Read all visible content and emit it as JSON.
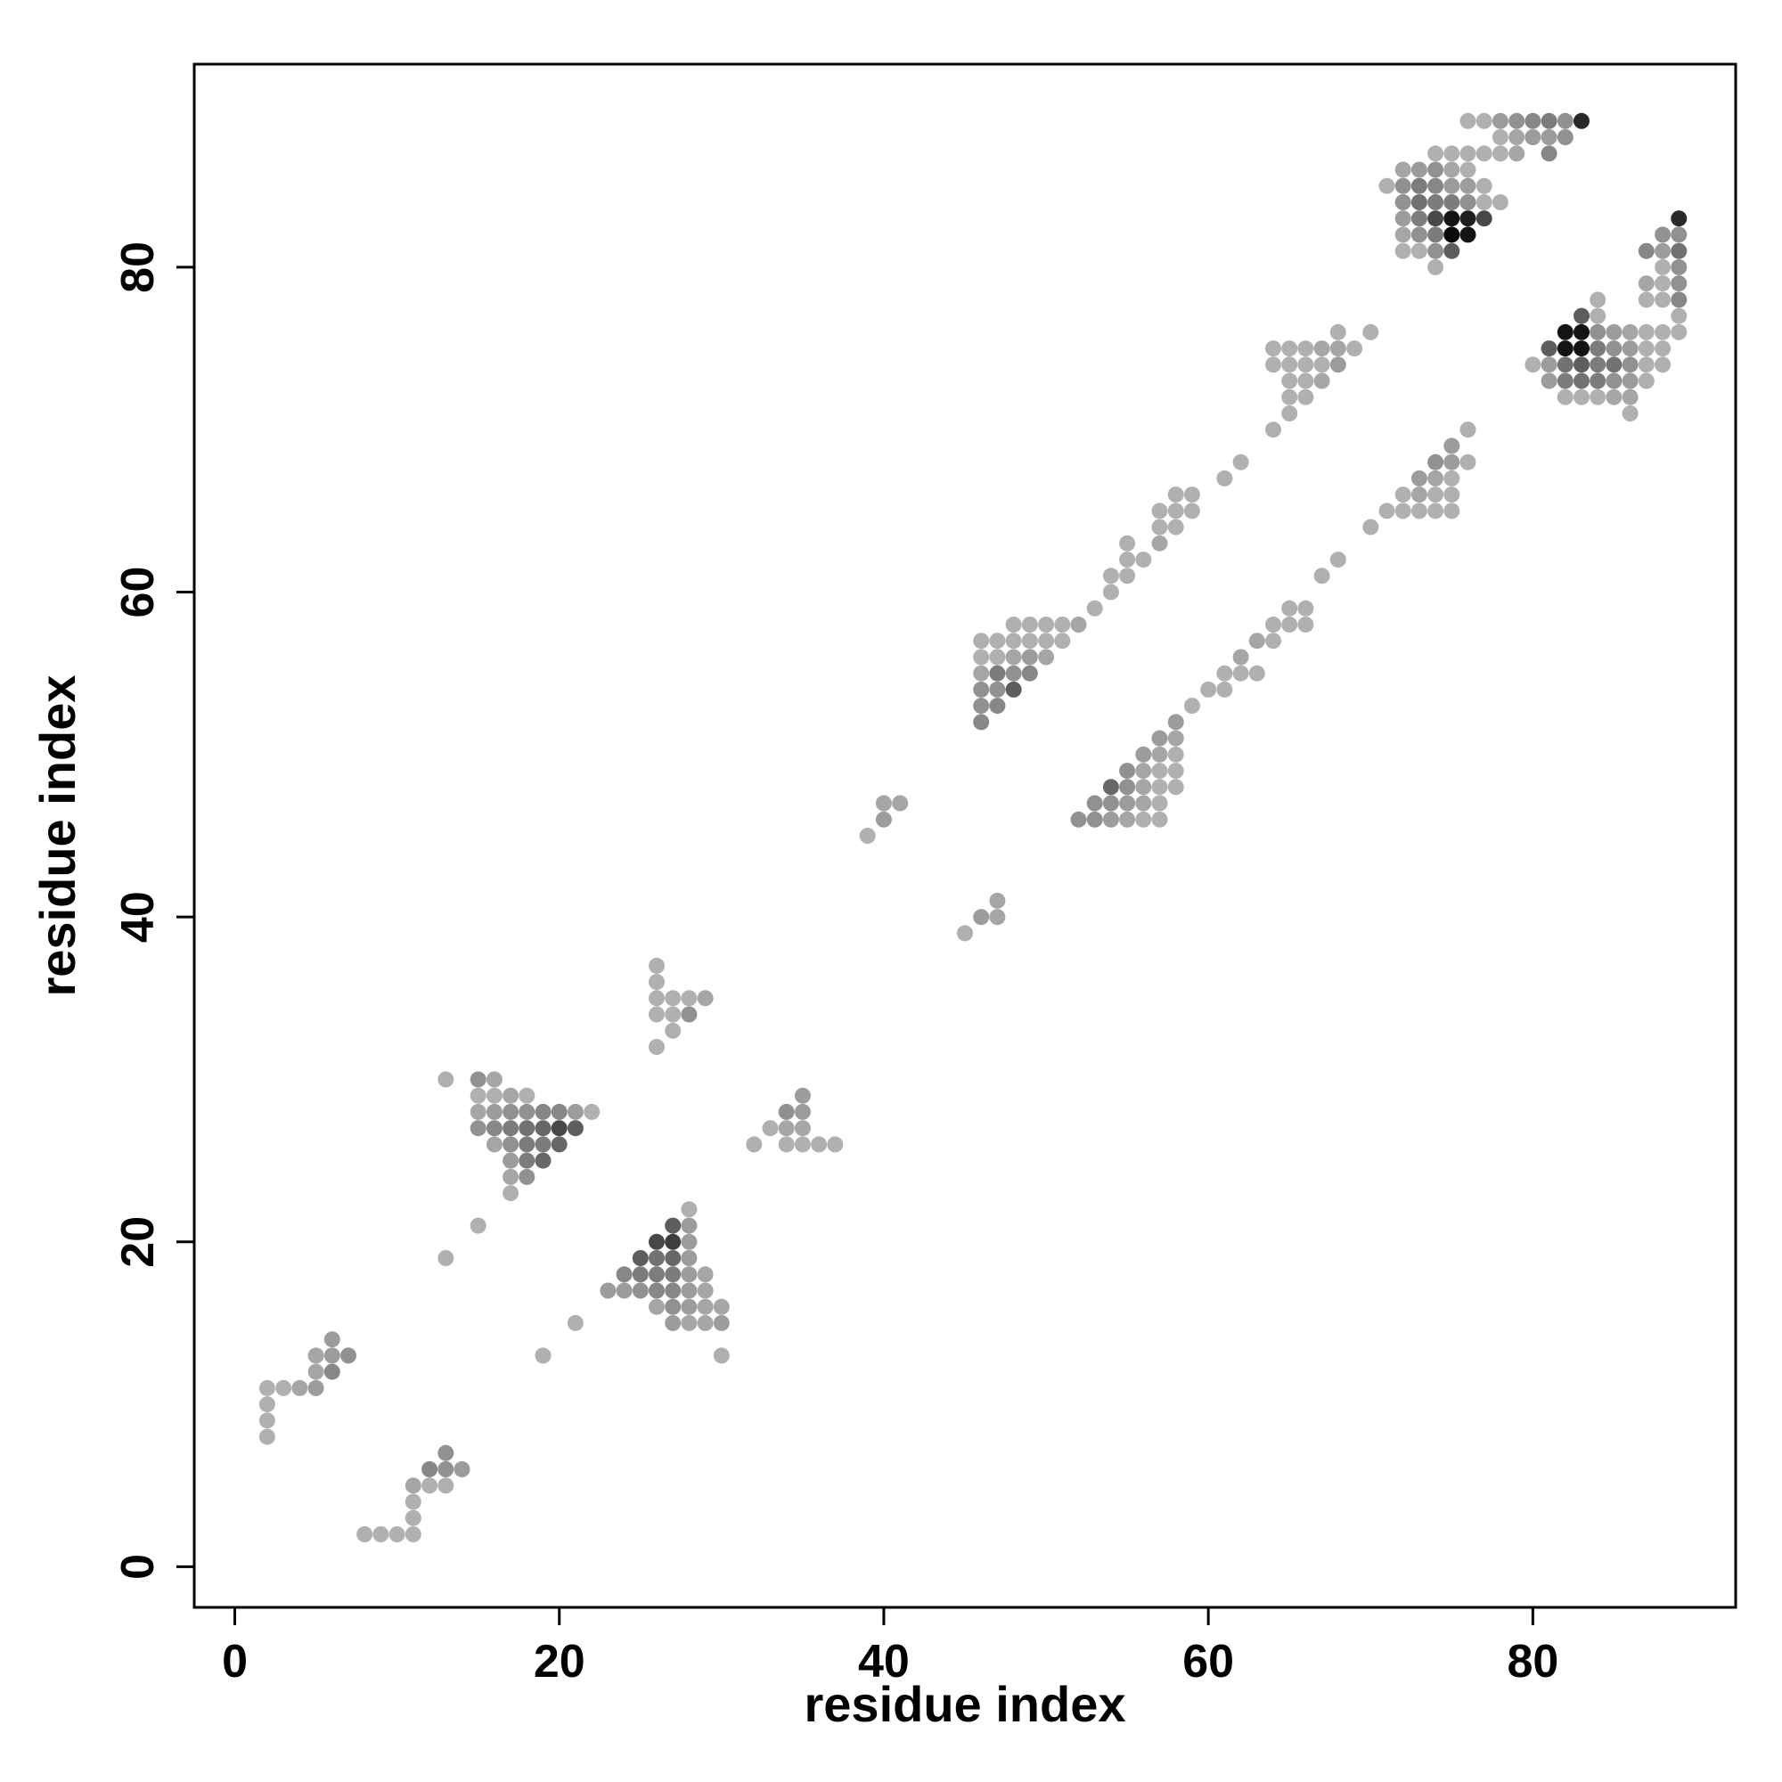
{
  "chart_data": {
    "type": "scatter",
    "title": "",
    "xlabel": "residue index",
    "ylabel": "residue index",
    "xlim": [
      -2.5,
      92.5
    ],
    "ylim": [
      -2.5,
      92.5
    ],
    "x_ticks": [
      0,
      20,
      40,
      60,
      80
    ],
    "y_ticks": [
      0,
      20,
      40,
      60,
      80
    ],
    "grid": false,
    "legend": "none",
    "value_meaning": "gray intensity 0-1 (1 = black)",
    "points": [
      [
        8,
        2,
        0.2
      ],
      [
        9,
        2,
        0.2
      ],
      [
        10,
        2,
        0.2
      ],
      [
        11,
        2,
        0.2
      ],
      [
        11,
        3,
        0.2
      ],
      [
        11,
        4,
        0.2
      ],
      [
        11,
        5,
        0.25
      ],
      [
        12,
        5,
        0.2
      ],
      [
        13,
        5,
        0.2
      ],
      [
        12,
        6,
        0.4
      ],
      [
        13,
        6,
        0.35
      ],
      [
        14,
        6,
        0.3
      ],
      [
        13,
        7,
        0.35
      ],
      [
        2,
        8,
        0.2
      ],
      [
        2,
        9,
        0.2
      ],
      [
        2,
        10,
        0.2
      ],
      [
        2,
        11,
        0.2
      ],
      [
        3,
        11,
        0.2
      ],
      [
        4,
        11,
        0.25
      ],
      [
        5,
        11,
        0.3
      ],
      [
        5,
        12,
        0.25
      ],
      [
        6,
        12,
        0.4
      ],
      [
        5,
        13,
        0.25
      ],
      [
        6,
        13,
        0.3
      ],
      [
        7,
        13,
        0.35
      ],
      [
        6,
        14,
        0.3
      ],
      [
        13,
        19,
        0.2
      ],
      [
        15,
        21,
        0.2
      ],
      [
        19,
        13,
        0.2
      ],
      [
        21,
        15,
        0.2
      ],
      [
        30,
        13,
        0.2
      ],
      [
        27,
        15,
        0.3
      ],
      [
        28,
        15,
        0.25
      ],
      [
        29,
        15,
        0.25
      ],
      [
        30,
        15,
        0.3
      ],
      [
        26,
        16,
        0.25
      ],
      [
        27,
        16,
        0.35
      ],
      [
        28,
        16,
        0.3
      ],
      [
        29,
        16,
        0.25
      ],
      [
        30,
        16,
        0.25
      ],
      [
        23,
        17,
        0.3
      ],
      [
        24,
        17,
        0.3
      ],
      [
        25,
        17,
        0.35
      ],
      [
        26,
        17,
        0.4
      ],
      [
        27,
        17,
        0.4
      ],
      [
        28,
        17,
        0.3
      ],
      [
        29,
        17,
        0.25
      ],
      [
        24,
        18,
        0.4
      ],
      [
        25,
        18,
        0.45
      ],
      [
        26,
        18,
        0.45
      ],
      [
        27,
        18,
        0.45
      ],
      [
        28,
        18,
        0.3
      ],
      [
        29,
        18,
        0.25
      ],
      [
        25,
        19,
        0.6
      ],
      [
        26,
        19,
        0.5
      ],
      [
        27,
        19,
        0.55
      ],
      [
        28,
        19,
        0.3
      ],
      [
        26,
        20,
        0.7
      ],
      [
        27,
        20,
        0.75
      ],
      [
        28,
        20,
        0.3
      ],
      [
        27,
        21,
        0.6
      ],
      [
        28,
        21,
        0.3
      ],
      [
        28,
        22,
        0.2
      ],
      [
        17,
        23,
        0.2
      ],
      [
        17,
        24,
        0.25
      ],
      [
        18,
        24,
        0.35
      ],
      [
        17,
        25,
        0.3
      ],
      [
        18,
        25,
        0.45
      ],
      [
        19,
        25,
        0.55
      ],
      [
        16,
        26,
        0.25
      ],
      [
        17,
        26,
        0.35
      ],
      [
        18,
        26,
        0.45
      ],
      [
        19,
        26,
        0.45
      ],
      [
        20,
        26,
        0.55
      ],
      [
        15,
        27,
        0.35
      ],
      [
        16,
        27,
        0.4
      ],
      [
        17,
        27,
        0.45
      ],
      [
        18,
        27,
        0.5
      ],
      [
        19,
        27,
        0.55
      ],
      [
        20,
        27,
        0.7
      ],
      [
        21,
        27,
        0.6
      ],
      [
        15,
        28,
        0.25
      ],
      [
        16,
        28,
        0.3
      ],
      [
        17,
        28,
        0.35
      ],
      [
        18,
        28,
        0.35
      ],
      [
        19,
        28,
        0.4
      ],
      [
        20,
        28,
        0.4
      ],
      [
        21,
        28,
        0.3
      ],
      [
        22,
        28,
        0.2
      ],
      [
        15,
        29,
        0.2
      ],
      [
        16,
        29,
        0.2
      ],
      [
        17,
        29,
        0.25
      ],
      [
        18,
        29,
        0.2
      ],
      [
        15,
        30,
        0.35
      ],
      [
        16,
        30,
        0.25
      ],
      [
        13,
        30,
        0.2
      ],
      [
        32,
        26,
        0.2
      ],
      [
        34,
        26,
        0.2
      ],
      [
        35,
        26,
        0.2
      ],
      [
        36,
        26,
        0.2
      ],
      [
        37,
        26,
        0.2
      ],
      [
        33,
        27,
        0.2
      ],
      [
        34,
        27,
        0.25
      ],
      [
        35,
        27,
        0.25
      ],
      [
        34,
        28,
        0.35
      ],
      [
        35,
        28,
        0.3
      ],
      [
        35,
        29,
        0.3
      ],
      [
        26,
        32,
        0.2
      ],
      [
        27,
        33,
        0.2
      ],
      [
        26,
        34,
        0.2
      ],
      [
        27,
        34,
        0.2
      ],
      [
        28,
        34,
        0.35
      ],
      [
        26,
        35,
        0.2
      ],
      [
        27,
        35,
        0.2
      ],
      [
        28,
        35,
        0.2
      ],
      [
        29,
        35,
        0.25
      ],
      [
        26,
        36,
        0.2
      ],
      [
        26,
        37,
        0.2
      ],
      [
        45,
        39,
        0.2
      ],
      [
        46,
        40,
        0.3
      ],
      [
        47,
        40,
        0.25
      ],
      [
        47,
        41,
        0.25
      ],
      [
        39,
        45,
        0.2
      ],
      [
        40,
        46,
        0.3
      ],
      [
        40,
        47,
        0.25
      ],
      [
        41,
        47,
        0.25
      ],
      [
        52,
        46,
        0.35
      ],
      [
        53,
        46,
        0.35
      ],
      [
        54,
        46,
        0.3
      ],
      [
        55,
        46,
        0.25
      ],
      [
        56,
        46,
        0.2
      ],
      [
        57,
        46,
        0.2
      ],
      [
        53,
        47,
        0.35
      ],
      [
        54,
        47,
        0.35
      ],
      [
        55,
        47,
        0.3
      ],
      [
        56,
        47,
        0.25
      ],
      [
        57,
        47,
        0.2
      ],
      [
        54,
        48,
        0.55
      ],
      [
        55,
        48,
        0.35
      ],
      [
        56,
        48,
        0.25
      ],
      [
        57,
        48,
        0.2
      ],
      [
        58,
        48,
        0.2
      ],
      [
        55,
        49,
        0.35
      ],
      [
        56,
        49,
        0.25
      ],
      [
        57,
        49,
        0.2
      ],
      [
        58,
        49,
        0.2
      ],
      [
        56,
        50,
        0.3
      ],
      [
        57,
        50,
        0.25
      ],
      [
        58,
        50,
        0.2
      ],
      [
        57,
        51,
        0.3
      ],
      [
        58,
        51,
        0.25
      ],
      [
        58,
        52,
        0.3
      ],
      [
        59,
        53,
        0.2
      ],
      [
        60,
        54,
        0.2
      ],
      [
        61,
        54,
        0.2
      ],
      [
        61,
        55,
        0.2
      ],
      [
        62,
        55,
        0.2
      ],
      [
        63,
        55,
        0.2
      ],
      [
        62,
        56,
        0.25
      ],
      [
        63,
        57,
        0.25
      ],
      [
        64,
        57,
        0.2
      ],
      [
        64,
        58,
        0.2
      ],
      [
        65,
        58,
        0.2
      ],
      [
        66,
        58,
        0.2
      ],
      [
        65,
        59,
        0.2
      ],
      [
        66,
        59,
        0.2
      ],
      [
        67,
        61,
        0.2
      ],
      [
        68,
        62,
        0.2
      ],
      [
        70,
        64,
        0.2
      ],
      [
        71,
        65,
        0.2
      ],
      [
        72,
        65,
        0.2
      ],
      [
        73,
        65,
        0.2
      ],
      [
        74,
        65,
        0.2
      ],
      [
        75,
        65,
        0.2
      ],
      [
        72,
        66,
        0.2
      ],
      [
        73,
        66,
        0.25
      ],
      [
        74,
        66,
        0.2
      ],
      [
        75,
        66,
        0.2
      ],
      [
        73,
        67,
        0.3
      ],
      [
        74,
        67,
        0.25
      ],
      [
        75,
        67,
        0.2
      ],
      [
        74,
        68,
        0.35
      ],
      [
        75,
        68,
        0.3
      ],
      [
        76,
        68,
        0.2
      ],
      [
        75,
        69,
        0.3
      ],
      [
        76,
        70,
        0.2
      ],
      [
        46,
        52,
        0.4
      ],
      [
        46,
        53,
        0.35
      ],
      [
        47,
        53,
        0.4
      ],
      [
        46,
        54,
        0.35
      ],
      [
        47,
        54,
        0.35
      ],
      [
        48,
        54,
        0.6
      ],
      [
        46,
        55,
        0.25
      ],
      [
        47,
        55,
        0.45
      ],
      [
        48,
        55,
        0.35
      ],
      [
        49,
        55,
        0.4
      ],
      [
        46,
        56,
        0.2
      ],
      [
        47,
        56,
        0.2
      ],
      [
        48,
        56,
        0.25
      ],
      [
        49,
        56,
        0.3
      ],
      [
        50,
        56,
        0.25
      ],
      [
        46,
        57,
        0.2
      ],
      [
        47,
        57,
        0.2
      ],
      [
        48,
        57,
        0.2
      ],
      [
        49,
        57,
        0.2
      ],
      [
        50,
        57,
        0.2
      ],
      [
        51,
        57,
        0.2
      ],
      [
        48,
        58,
        0.2
      ],
      [
        49,
        58,
        0.2
      ],
      [
        50,
        58,
        0.2
      ],
      [
        51,
        58,
        0.2
      ],
      [
        52,
        58,
        0.25
      ],
      [
        53,
        59,
        0.2
      ],
      [
        54,
        60,
        0.2
      ],
      [
        54,
        61,
        0.2
      ],
      [
        55,
        61,
        0.2
      ],
      [
        55,
        62,
        0.2
      ],
      [
        56,
        62,
        0.2
      ],
      [
        55,
        63,
        0.2
      ],
      [
        57,
        63,
        0.25
      ],
      [
        57,
        64,
        0.2
      ],
      [
        58,
        64,
        0.2
      ],
      [
        57,
        65,
        0.2
      ],
      [
        58,
        65,
        0.2
      ],
      [
        59,
        65,
        0.2
      ],
      [
        58,
        66,
        0.2
      ],
      [
        59,
        66,
        0.2
      ],
      [
        61,
        67,
        0.2
      ],
      [
        62,
        68,
        0.2
      ],
      [
        64,
        70,
        0.2
      ],
      [
        65,
        71,
        0.2
      ],
      [
        65,
        72,
        0.2
      ],
      [
        66,
        72,
        0.2
      ],
      [
        65,
        73,
        0.2
      ],
      [
        66,
        73,
        0.2
      ],
      [
        67,
        73,
        0.25
      ],
      [
        64,
        74,
        0.2
      ],
      [
        65,
        74,
        0.2
      ],
      [
        66,
        74,
        0.2
      ],
      [
        67,
        74,
        0.2
      ],
      [
        68,
        74,
        0.3
      ],
      [
        64,
        75,
        0.2
      ],
      [
        65,
        75,
        0.2
      ],
      [
        66,
        75,
        0.2
      ],
      [
        67,
        75,
        0.25
      ],
      [
        68,
        75,
        0.25
      ],
      [
        69,
        75,
        0.2
      ],
      [
        68,
        76,
        0.2
      ],
      [
        70,
        76,
        0.2
      ],
      [
        82,
        72,
        0.2
      ],
      [
        83,
        72,
        0.2
      ],
      [
        84,
        72,
        0.2
      ],
      [
        85,
        72,
        0.25
      ],
      [
        86,
        72,
        0.25
      ],
      [
        86,
        71,
        0.2
      ],
      [
        81,
        73,
        0.3
      ],
      [
        82,
        73,
        0.45
      ],
      [
        83,
        73,
        0.5
      ],
      [
        84,
        73,
        0.45
      ],
      [
        85,
        73,
        0.35
      ],
      [
        86,
        73,
        0.3
      ],
      [
        87,
        73,
        0.2
      ],
      [
        80,
        74,
        0.2
      ],
      [
        81,
        74,
        0.3
      ],
      [
        82,
        74,
        0.5
      ],
      [
        83,
        74,
        0.6
      ],
      [
        84,
        74,
        0.45
      ],
      [
        85,
        74,
        0.5
      ],
      [
        86,
        74,
        0.35
      ],
      [
        87,
        74,
        0.2
      ],
      [
        88,
        74,
        0.2
      ],
      [
        81,
        75,
        0.6
      ],
      [
        82,
        75,
        0.95
      ],
      [
        83,
        75,
        0.95
      ],
      [
        84,
        75,
        0.45
      ],
      [
        85,
        75,
        0.35
      ],
      [
        86,
        75,
        0.3
      ],
      [
        87,
        75,
        0.2
      ],
      [
        88,
        75,
        0.2
      ],
      [
        82,
        76,
        0.95
      ],
      [
        83,
        76,
        0.95
      ],
      [
        84,
        76,
        0.35
      ],
      [
        85,
        76,
        0.3
      ],
      [
        86,
        76,
        0.25
      ],
      [
        87,
        76,
        0.2
      ],
      [
        88,
        76,
        0.2
      ],
      [
        83,
        77,
        0.6
      ],
      [
        84,
        77,
        0.2
      ],
      [
        84,
        78,
        0.2
      ],
      [
        89,
        76,
        0.2
      ],
      [
        89,
        77,
        0.2
      ],
      [
        87,
        78,
        0.2
      ],
      [
        88,
        78,
        0.2
      ],
      [
        89,
        78,
        0.4
      ],
      [
        87,
        79,
        0.25
      ],
      [
        88,
        79,
        0.2
      ],
      [
        89,
        79,
        0.35
      ],
      [
        88,
        80,
        0.2
      ],
      [
        89,
        80,
        0.35
      ],
      [
        87,
        81,
        0.4
      ],
      [
        88,
        81,
        0.3
      ],
      [
        89,
        81,
        0.5
      ],
      [
        88,
        82,
        0.35
      ],
      [
        89,
        82,
        0.35
      ],
      [
        89,
        83,
        0.85
      ],
      [
        72,
        81,
        0.2
      ],
      [
        74,
        80,
        0.2
      ],
      [
        73,
        81,
        0.2
      ],
      [
        74,
        81,
        0.35
      ],
      [
        75,
        81,
        0.6
      ],
      [
        72,
        82,
        0.25
      ],
      [
        73,
        82,
        0.35
      ],
      [
        74,
        82,
        0.45
      ],
      [
        75,
        82,
        1.0
      ],
      [
        76,
        82,
        0.95
      ],
      [
        72,
        83,
        0.3
      ],
      [
        73,
        83,
        0.45
      ],
      [
        74,
        83,
        0.7
      ],
      [
        75,
        83,
        0.95
      ],
      [
        76,
        83,
        0.9
      ],
      [
        77,
        83,
        0.7
      ],
      [
        72,
        84,
        0.35
      ],
      [
        73,
        84,
        0.5
      ],
      [
        74,
        84,
        0.45
      ],
      [
        75,
        84,
        0.45
      ],
      [
        76,
        84,
        0.35
      ],
      [
        77,
        84,
        0.2
      ],
      [
        78,
        84,
        0.2
      ],
      [
        71,
        85,
        0.2
      ],
      [
        72,
        85,
        0.35
      ],
      [
        73,
        85,
        0.45
      ],
      [
        74,
        85,
        0.4
      ],
      [
        75,
        85,
        0.3
      ],
      [
        76,
        85,
        0.3
      ],
      [
        77,
        85,
        0.2
      ],
      [
        72,
        86,
        0.25
      ],
      [
        73,
        86,
        0.3
      ],
      [
        74,
        86,
        0.35
      ],
      [
        75,
        86,
        0.25
      ],
      [
        76,
        86,
        0.2
      ],
      [
        74,
        87,
        0.2
      ],
      [
        75,
        87,
        0.2
      ],
      [
        76,
        87,
        0.2
      ],
      [
        77,
        87,
        0.2
      ],
      [
        78,
        87,
        0.2
      ],
      [
        79,
        87,
        0.25
      ],
      [
        81,
        87,
        0.4
      ],
      [
        78,
        88,
        0.2
      ],
      [
        79,
        88,
        0.25
      ],
      [
        80,
        88,
        0.3
      ],
      [
        81,
        88,
        0.3
      ],
      [
        82,
        88,
        0.35
      ],
      [
        76,
        89,
        0.2
      ],
      [
        77,
        89,
        0.2
      ],
      [
        78,
        89,
        0.3
      ],
      [
        79,
        89,
        0.35
      ],
      [
        80,
        89,
        0.4
      ],
      [
        81,
        89,
        0.45
      ],
      [
        82,
        89,
        0.35
      ],
      [
        83,
        89,
        0.85
      ]
    ]
  }
}
